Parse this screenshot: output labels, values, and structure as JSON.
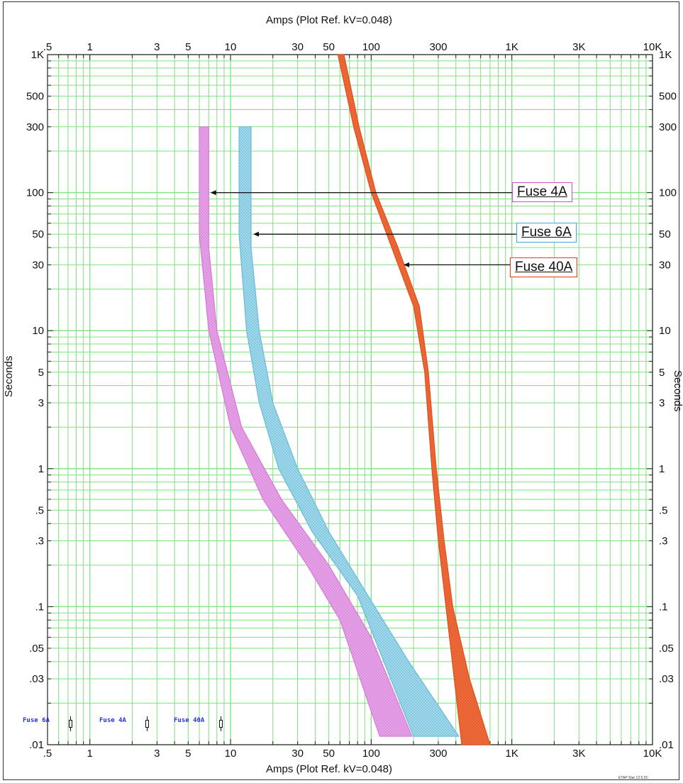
{
  "chart_data": {
    "type": "line",
    "x_scale": "log",
    "y_scale": "log",
    "xlim": [
      0.5,
      10000
    ],
    "ylim": [
      0.01,
      1000
    ],
    "xlabel_top": "Amps (Plot Ref. kV=0.048)",
    "xlabel_bottom": "Amps (Plot Ref. kV=0.048)",
    "ylabel_left": "Seconds",
    "ylabel_right": "Seconds",
    "grid": true,
    "grid_color": "#7fe07f",
    "x_ticks": [
      {
        "value": 0.5,
        "label": ".5"
      },
      {
        "value": 1,
        "label": "1"
      },
      {
        "value": 3,
        "label": "3"
      },
      {
        "value": 5,
        "label": "5"
      },
      {
        "value": 10,
        "label": "10"
      },
      {
        "value": 30,
        "label": "30"
      },
      {
        "value": 50,
        "label": "50"
      },
      {
        "value": 100,
        "label": "100"
      },
      {
        "value": 300,
        "label": "300"
      },
      {
        "value": 1000,
        "label": "1K"
      },
      {
        "value": 3000,
        "label": "3K"
      },
      {
        "value": 10000,
        "label": "10K"
      }
    ],
    "y_ticks": [
      {
        "value": 1000,
        "label": "1K"
      },
      {
        "value": 500,
        "label": "500"
      },
      {
        "value": 300,
        "label": "300"
      },
      {
        "value": 100,
        "label": "100"
      },
      {
        "value": 50,
        "label": "50"
      },
      {
        "value": 30,
        "label": "30"
      },
      {
        "value": 10,
        "label": "10"
      },
      {
        "value": 5,
        "label": "5"
      },
      {
        "value": 3,
        "label": "3"
      },
      {
        "value": 1,
        "label": "1"
      },
      {
        "value": 0.5,
        "label": ".5"
      },
      {
        "value": 0.3,
        "label": ".3"
      },
      {
        "value": 0.1,
        "label": ".1"
      },
      {
        "value": 0.05,
        "label": ".05"
      },
      {
        "value": 0.03,
        "label": ".03"
      },
      {
        "value": 0.01,
        "label": ".01"
      }
    ],
    "series": [
      {
        "name": "Fuse 4A",
        "color": "#d77ad7",
        "fill": "#e7a9e7",
        "min_melt": [
          [
            6,
            300
          ],
          [
            6,
            50
          ],
          [
            7,
            10
          ],
          [
            10,
            2
          ],
          [
            17,
            0.6
          ],
          [
            35,
            0.2
          ],
          [
            60,
            0.08
          ],
          [
            115,
            0.0115
          ]
        ],
        "total_clear": [
          [
            7,
            300
          ],
          [
            7,
            40
          ],
          [
            8,
            10
          ],
          [
            12,
            2
          ],
          [
            23,
            0.6
          ],
          [
            50,
            0.2
          ],
          [
            100,
            0.06
          ],
          [
            195,
            0.0115
          ]
        ]
      },
      {
        "name": "Fuse 6A",
        "color": "#6bbbd6",
        "fill": "#a9dcee",
        "min_melt": [
          [
            11.5,
            300
          ],
          [
            11.5,
            50
          ],
          [
            13,
            10
          ],
          [
            16,
            3
          ],
          [
            22,
            1
          ],
          [
            38,
            0.35
          ],
          [
            80,
            0.12
          ],
          [
            200,
            0.0115
          ]
        ],
        "total_clear": [
          [
            14,
            300
          ],
          [
            14,
            40
          ],
          [
            16,
            10
          ],
          [
            20,
            3
          ],
          [
            30,
            1
          ],
          [
            50,
            0.35
          ],
          [
            95,
            0.12
          ],
          [
            185,
            0.04
          ],
          [
            420,
            0.0115
          ]
        ]
      },
      {
        "name": "Fuse 40A",
        "color": "#e0501f",
        "fill": "#f07040",
        "min_melt": [
          [
            58,
            1000
          ],
          [
            75,
            300
          ],
          [
            100,
            100
          ],
          [
            140,
            40
          ],
          [
            200,
            15
          ],
          [
            240,
            5
          ],
          [
            270,
            1
          ],
          [
            300,
            0.3
          ],
          [
            340,
            0.1
          ],
          [
            440,
            0.01
          ]
        ],
        "total_clear": [
          [
            64,
            1000
          ],
          [
            82,
            300
          ],
          [
            108,
            100
          ],
          [
            155,
            40
          ],
          [
            220,
            15
          ],
          [
            255,
            5
          ],
          [
            290,
            1
          ],
          [
            330,
            0.3
          ],
          [
            380,
            0.1
          ],
          [
            500,
            0.03
          ],
          [
            700,
            0.01
          ]
        ]
      }
    ],
    "annotations": [
      {
        "text": "Fuse 4A",
        "border": "#d050c8",
        "arrow_to": [
          7.2,
          100
        ]
      },
      {
        "text": "Fuse 6A",
        "border": "#40a8d0",
        "arrow_to": [
          14.5,
          50
        ]
      },
      {
        "text": "Fuse 40A",
        "border": "#e04010",
        "arrow_to": [
          170,
          30
        ]
      }
    ],
    "bottom_legend": [
      {
        "label": "Fuse 6A"
      },
      {
        "label": "Fuse 4A"
      },
      {
        "label": "Fuse 40A"
      }
    ],
    "footer_note": "ETAP Star 12.5.0C"
  }
}
